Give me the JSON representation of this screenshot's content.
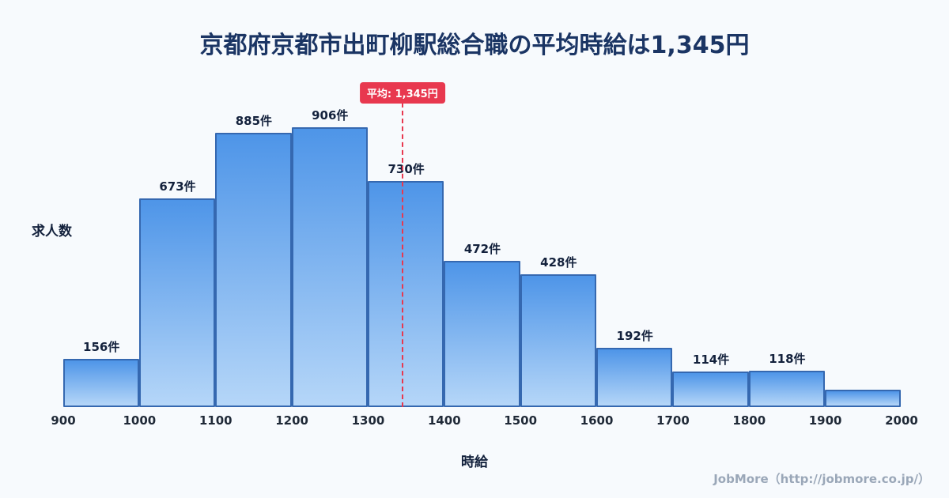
{
  "title": "京都府京都市出町柳駅総合職の平均時給は1,345円",
  "footer": "JobMore（http://jobmore.co.jp/）",
  "chart_data": {
    "type": "bar",
    "title": "京都府京都市出町柳駅総合職の平均時給は1,345円",
    "xlabel": "時給",
    "ylabel": "求人数",
    "x_range": [
      900,
      2000
    ],
    "bin_edges": [
      900,
      1000,
      1100,
      1200,
      1300,
      1400,
      1500,
      1600,
      1700,
      1800,
      1900,
      2000
    ],
    "x_ticks": [
      "900",
      "1000",
      "1100",
      "1200",
      "1300",
      "1400",
      "1500",
      "1600",
      "1700",
      "1800",
      "1900",
      "2000"
    ],
    "values": [
      156,
      673,
      885,
      906,
      730,
      472,
      428,
      192,
      114,
      118,
      55
    ],
    "labels": [
      "156件",
      "673件",
      "885件",
      "906件",
      "730件",
      "472件",
      "428件",
      "192件",
      "114件",
      "118件",
      ""
    ],
    "ylim": [
      0,
      960
    ],
    "grid": false,
    "legend": "none",
    "average": {
      "value": 1345,
      "label": "平均: 1,345円"
    }
  },
  "colors": {
    "background": "#f7fafd",
    "title": "#1b3564",
    "bar_top": "#4e95e8",
    "bar_bottom": "#b5d6f8",
    "bar_border": "#3568b0",
    "average": "#e8384f",
    "value_label": "#13213c",
    "tick_label": "#1f2937",
    "footer": "#9aa7b8"
  }
}
